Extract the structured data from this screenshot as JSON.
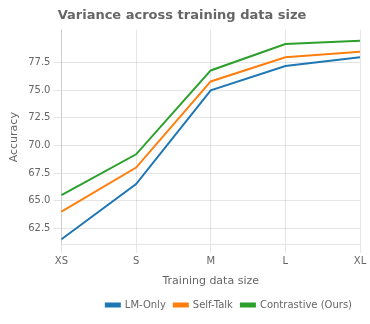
{
  "chart_data": {
    "type": "line",
    "title": "Variance across training data size",
    "x_label": "Training data size",
    "y_label": "Accuracy",
    "categories": [
      "XS",
      "S",
      "M",
      "L",
      "XL"
    ],
    "series": [
      {
        "name": "LM-Only",
        "color": "#1f77b4",
        "values": [
          61.5,
          66.5,
          75.0,
          77.2,
          78.0
        ]
      },
      {
        "name": "Self-Talk",
        "color": "#ff7f0e",
        "values": [
          64.0,
          68.0,
          75.8,
          78.0,
          78.5
        ]
      },
      {
        "name": "Contrastive (Ours)",
        "color": "#2ca02c",
        "values": [
          65.5,
          69.2,
          76.8,
          79.2,
          79.5
        ]
      }
    ],
    "ylim": [
      61.0,
      80.5
    ],
    "yticks": [
      62.5,
      {
        "value": 65.0,
        "label": "65.0"
      },
      67.5,
      {
        "value": 70.0,
        "label": "70.0"
      },
      72.5,
      {
        "value": 75.0,
        "label": "75.0"
      },
      77.5
    ],
    "grid": true,
    "legend": "lower right"
  }
}
